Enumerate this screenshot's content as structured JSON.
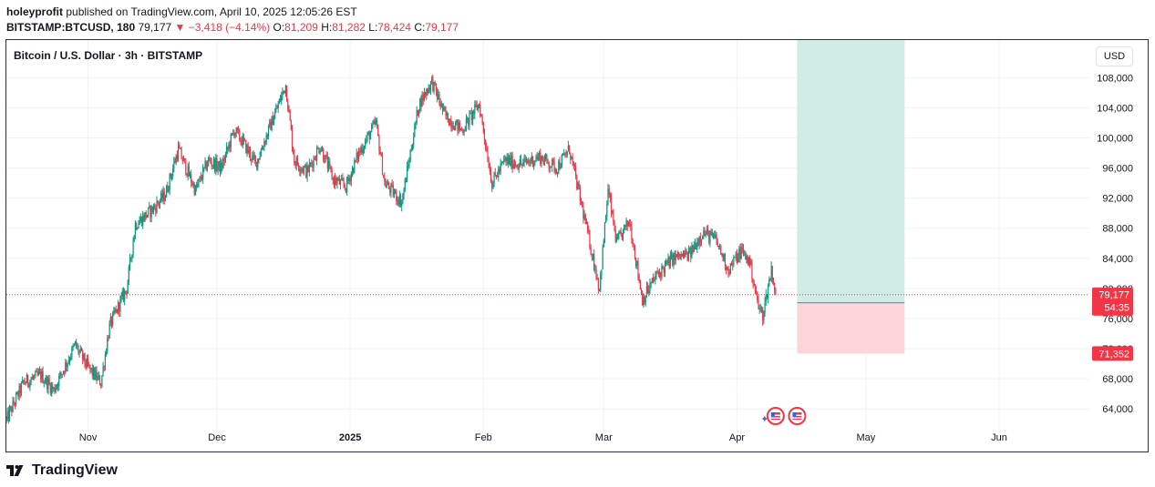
{
  "header": {
    "author": "holeyprofit",
    "published_text": "published on TradingView.com, April 10, 2025 12:05:26 EST",
    "symbol": "BITSTAMP:BTCUSD, 180",
    "last": "79,177",
    "change_arrow": "▼",
    "change": "−3,418 (−4.14%)",
    "o_label": "O:",
    "o": "81,209",
    "h_label": "H:",
    "h": "81,282",
    "l_label": "L:",
    "l": "78,424",
    "c_label": "C:",
    "c": "79,177"
  },
  "legend": {
    "title": "Bitcoin / U.S. Dollar · 3h · BITSTAMP"
  },
  "currency_button": "USD",
  "footer": {
    "brand": "TradingView"
  },
  "colors": {
    "up": "#089981",
    "down": "#f23645",
    "grid": "#f0f3fa",
    "profit_zone": "#cfece5",
    "loss_zone": "#fbd5d7",
    "price_line": "#f23645"
  },
  "chart_data": {
    "type": "candlestick",
    "title": "Bitcoin / U.S. Dollar · 3h · BITSTAMP",
    "ylim": [
      61000,
      113000
    ],
    "y_ticks": [
      "64,000",
      "68,000",
      "72,000",
      "76,000",
      "80,000",
      "84,000",
      "88,000",
      "92,000",
      "96,000",
      "100,000",
      "104,000",
      "108,000"
    ],
    "y_tick_values": [
      64000,
      68000,
      72000,
      76000,
      80000,
      84000,
      88000,
      92000,
      96000,
      100000,
      104000,
      108000
    ],
    "x_range": [
      "2024-10-13",
      "2025-06-22"
    ],
    "x_ticks": [
      {
        "label": "Nov",
        "date": "2024-11-01"
      },
      {
        "label": "Dec",
        "date": "2024-12-01"
      },
      {
        "label": "2025",
        "date": "2025-01-01"
      },
      {
        "label": "Feb",
        "date": "2025-02-01"
      },
      {
        "label": "Mar",
        "date": "2025-03-01"
      },
      {
        "label": "Apr",
        "date": "2025-04-01"
      },
      {
        "label": "May",
        "date": "2025-05-01"
      },
      {
        "label": "Jun",
        "date": "2025-06-01"
      }
    ],
    "series": [
      {
        "name": "BTCUSD",
        "points": [
          {
            "date": "2024-10-13",
            "close": 62500
          },
          {
            "date": "2024-10-17",
            "close": 67500
          },
          {
            "date": "2024-10-21",
            "close": 68500
          },
          {
            "date": "2024-10-24",
            "close": 66500
          },
          {
            "date": "2024-10-29",
            "close": 72500
          },
          {
            "date": "2024-11-01",
            "close": 69500
          },
          {
            "date": "2024-11-04",
            "close": 67500
          },
          {
            "date": "2024-11-06",
            "close": 75000
          },
          {
            "date": "2024-11-10",
            "close": 80000
          },
          {
            "date": "2024-11-12",
            "close": 88500
          },
          {
            "date": "2024-11-16",
            "close": 90500
          },
          {
            "date": "2024-11-19",
            "close": 92500
          },
          {
            "date": "2024-11-22",
            "close": 98500
          },
          {
            "date": "2024-11-26",
            "close": 93000
          },
          {
            "date": "2024-11-29",
            "close": 97000
          },
          {
            "date": "2024-12-02",
            "close": 96000
          },
          {
            "date": "2024-12-05",
            "close": 101000
          },
          {
            "date": "2024-12-07",
            "close": 99500
          },
          {
            "date": "2024-12-10",
            "close": 96500
          },
          {
            "date": "2024-12-13",
            "close": 101000
          },
          {
            "date": "2024-12-17",
            "close": 107000
          },
          {
            "date": "2024-12-19",
            "close": 97000
          },
          {
            "date": "2024-12-22",
            "close": 95500
          },
          {
            "date": "2024-12-25",
            "close": 99000
          },
          {
            "date": "2024-12-28",
            "close": 94500
          },
          {
            "date": "2024-12-31",
            "close": 93500
          },
          {
            "date": "2025-01-03",
            "close": 98000
          },
          {
            "date": "2025-01-07",
            "close": 102000
          },
          {
            "date": "2025-01-09",
            "close": 94000
          },
          {
            "date": "2025-01-13",
            "close": 91500
          },
          {
            "date": "2025-01-17",
            "close": 104500
          },
          {
            "date": "2025-01-20",
            "close": 107500
          },
          {
            "date": "2025-01-23",
            "close": 103000
          },
          {
            "date": "2025-01-27",
            "close": 101000
          },
          {
            "date": "2025-01-31",
            "close": 104500
          },
          {
            "date": "2025-02-03",
            "close": 94000
          },
          {
            "date": "2025-02-06",
            "close": 97000
          },
          {
            "date": "2025-02-10",
            "close": 96500
          },
          {
            "date": "2025-02-14",
            "close": 97500
          },
          {
            "date": "2025-02-18",
            "close": 96000
          },
          {
            "date": "2025-02-21",
            "close": 98500
          },
          {
            "date": "2025-02-25",
            "close": 88000
          },
          {
            "date": "2025-02-28",
            "close": 80000
          },
          {
            "date": "2025-03-02",
            "close": 93000
          },
          {
            "date": "2025-03-04",
            "close": 86000
          },
          {
            "date": "2025-03-07",
            "close": 89000
          },
          {
            "date": "2025-03-10",
            "close": 78500
          },
          {
            "date": "2025-03-13",
            "close": 81500
          },
          {
            "date": "2025-03-17",
            "close": 84000
          },
          {
            "date": "2025-03-21",
            "close": 84500
          },
          {
            "date": "2025-03-24",
            "close": 87500
          },
          {
            "date": "2025-03-27",
            "close": 86500
          },
          {
            "date": "2025-03-30",
            "close": 82500
          },
          {
            "date": "2025-04-02",
            "close": 85000
          },
          {
            "date": "2025-04-04",
            "close": 83500
          },
          {
            "date": "2025-04-06",
            "close": 77500
          },
          {
            "date": "2025-04-07",
            "close": 76500
          },
          {
            "date": "2025-04-09",
            "close": 82500
          },
          {
            "date": "2025-04-10",
            "close": 79177
          }
        ]
      }
    ],
    "current_price": {
      "value": 79177,
      "label": "79,177",
      "countdown": "54:35"
    },
    "position_tool": {
      "type": "long",
      "start": "2025-04-15",
      "end": "2025-05-10",
      "entry": 78100,
      "target": 113000,
      "stop": 71352,
      "stop_label": "71,352"
    },
    "event_icons": [
      {
        "date": "2025-04-10"
      },
      {
        "date": "2025-04-15"
      }
    ]
  }
}
